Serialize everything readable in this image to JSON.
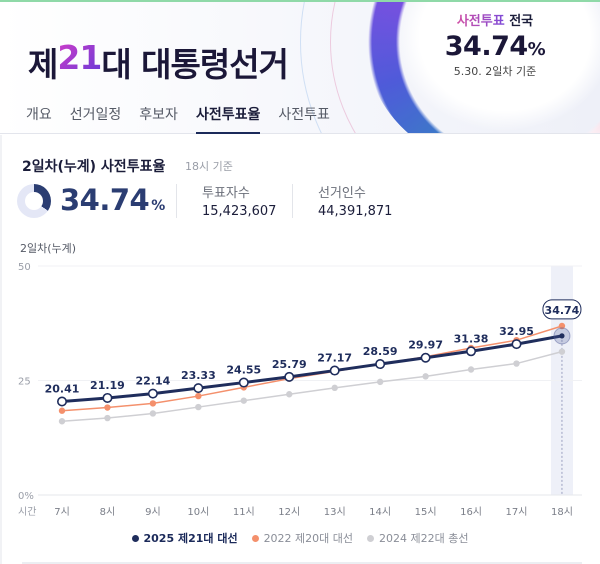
{
  "header": {
    "title_prefix": "제",
    "title_number": "21",
    "title_suffix": "대 대통령선거",
    "stat": {
      "label_accent": "사전투표",
      "label_rest": " 전국",
      "value": "34.74",
      "unit": "%",
      "date": "5.30. 2일차 기준"
    }
  },
  "tabs": [
    {
      "label": "개요",
      "active": false
    },
    {
      "label": "선거일정",
      "active": false
    },
    {
      "label": "후보자",
      "active": false
    },
    {
      "label": "사전투표율",
      "active": true
    },
    {
      "label": "사전투표",
      "active": false
    }
  ],
  "summary": {
    "title": "2일차(누계) 사전투표율",
    "subtitle": "18시 기준",
    "rate": "34.74",
    "rate_unit": "%",
    "voters_label": "투표자수",
    "voters_value": "15,423,607",
    "electorate_label": "선거인수",
    "electorate_value": "44,391,871"
  },
  "chart_caption": "2일차(누계)",
  "colors": {
    "series_2025": "#1f2d5c",
    "series_2022": "#f4906c",
    "series_2024": "#cfcfd3",
    "highlight_band": "#eef0f8"
  },
  "chart_data": {
    "type": "line",
    "title": "2일차(누계)",
    "xlabel": "시간",
    "ylabel": "",
    "ylim": [
      0,
      50
    ],
    "y_ticks": [
      "0%",
      "25",
      "50"
    ],
    "categories": [
      "7시",
      "8시",
      "9시",
      "10시",
      "11시",
      "12시",
      "13시",
      "14시",
      "15시",
      "16시",
      "17시",
      "18시"
    ],
    "series": [
      {
        "name": "2025 제21대 대선",
        "values": [
          20.41,
          21.19,
          22.14,
          23.33,
          24.55,
          25.79,
          27.17,
          28.59,
          29.97,
          31.38,
          32.95,
          34.74
        ],
        "labeled": true
      },
      {
        "name": "2022 제20대 대선",
        "values": [
          18.4,
          19.1,
          20.0,
          21.6,
          23.5,
          25.4,
          27.0,
          28.6,
          30.2,
          32.1,
          33.8,
          36.9
        ],
        "labeled": false
      },
      {
        "name": "2024 제22대 총선",
        "values": [
          16.1,
          16.8,
          17.8,
          19.2,
          20.6,
          22.0,
          23.4,
          24.7,
          25.9,
          27.4,
          28.7,
          31.3
        ],
        "labeled": false
      }
    ],
    "highlight": {
      "category": "18시",
      "value": "34.74"
    },
    "grid": true,
    "legend_position": "bottom"
  },
  "legend": [
    {
      "label": "2025 제21대 대선",
      "color": "#1f2d5c"
    },
    {
      "label": "2022 제20대 대선",
      "color": "#f4906c"
    },
    {
      "label": "2024 제22대 총선",
      "color": "#cfcfd3"
    }
  ]
}
